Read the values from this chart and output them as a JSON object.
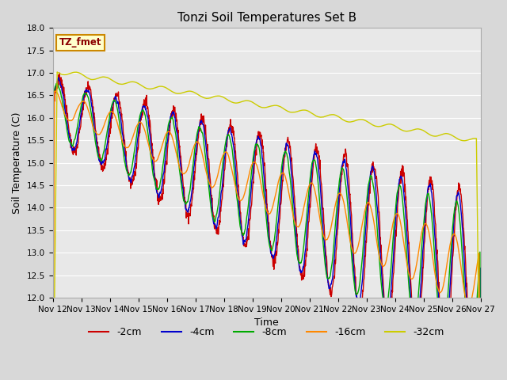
{
  "title": "Tonzi Soil Temperatures Set B",
  "xlabel": "Time",
  "ylabel": "Soil Temperature (C)",
  "ylim": [
    12.0,
    18.0
  ],
  "yticks": [
    12.0,
    12.5,
    13.0,
    13.5,
    14.0,
    14.5,
    15.0,
    15.5,
    16.0,
    16.5,
    17.0,
    17.5,
    18.0
  ],
  "xtick_labels": [
    "Nov 12",
    "Nov 13",
    "Nov 14",
    "Nov 15",
    "Nov 16",
    "Nov 17",
    "Nov 18",
    "Nov 19",
    "Nov 20",
    "Nov 21",
    "Nov 22",
    "Nov 23",
    "Nov 24",
    "Nov 25",
    "Nov 26",
    "Nov 27"
  ],
  "legend_label": "TZ_fmet",
  "series_labels": [
    "-2cm",
    "-4cm",
    "-8cm",
    "-16cm",
    "-32cm"
  ],
  "series_colors": [
    "#cc0000",
    "#0000cc",
    "#00aa00",
    "#ff8800",
    "#cccc00"
  ],
  "line_width": 1.0,
  "fig_bg_color": "#d8d8d8",
  "plot_bg_color": "#e8e8e8",
  "grid_color": "#ffffff",
  "title_fontsize": 11,
  "axis_label_fontsize": 9,
  "tick_fontsize": 7.5
}
